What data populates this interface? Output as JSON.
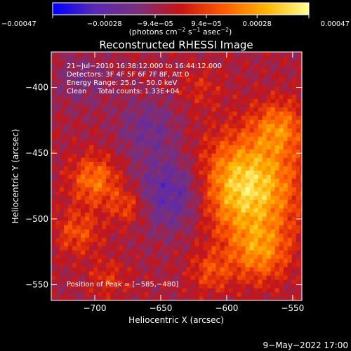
{
  "chart_data": {
    "type": "heatmap",
    "title": "Reconstructed RHESSI Image",
    "xlabel": "Heliocentric X (arcsec)",
    "ylabel": "Heliocentric Y (arcsec)",
    "xlim": [
      -733,
      -543
    ],
    "ylim": [
      -562,
      -373
    ],
    "x_ticks": [
      -700,
      -650,
      -600,
      -550
    ],
    "x_tick_labels": [
      "−700",
      "−650",
      "−600",
      "−550"
    ],
    "y_ticks": [
      -400,
      -450,
      -500,
      -550
    ],
    "y_tick_labels": [
      "−400",
      "−450",
      "−500",
      "−550"
    ],
    "colorbar": {
      "min": -0.00047,
      "max": 0.00047,
      "tick_values": [
        -0.00047,
        -0.00028,
        -9.4e-05,
        9.4e-05,
        0.00028,
        0.00047
      ],
      "tick_labels": [
        "−0.00047",
        "−0.00028",
        "−9.4e−05",
        "9.4e−05",
        "0.00028",
        "0.00047"
      ],
      "unit_main": "(photons cm",
      "unit_sup1": "−2",
      "unit_mid1": " s",
      "unit_sup2": "−1",
      "unit_mid2": " asec",
      "unit_sup3": "−2",
      "unit_end": ")",
      "colormap": [
        "#0000ff",
        "#5a2ab0",
        "#7a2f7a",
        "#c81414",
        "#ff5a00",
        "#ffb400",
        "#ffff96"
      ]
    },
    "info_lines": [
      "21−Jul−2010 16:38:12.000 to 16:44:12.000",
      "Detectors: 3F 4F 5F 6F 7F 8F, Att 0",
      "Energy Range: 25.0 − 50.0 keV",
      "Clean     Total counts: 1.33E+04"
    ],
    "peak_label": "Position of Peak = [−585,−480]",
    "peak": [
      -585,
      -480
    ],
    "sources": [
      {
        "x": -585,
        "y": -475,
        "sigma": 26,
        "amplitude": 0.00047
      },
      {
        "x": -560,
        "y": -430,
        "sigma": 14,
        "amplitude": 0.00024
      },
      {
        "x": -575,
        "y": -525,
        "sigma": 16,
        "amplitude": 0.00026
      },
      {
        "x": -700,
        "y": -470,
        "sigma": 13,
        "amplitude": 0.00026
      },
      {
        "x": -675,
        "y": -490,
        "sigma": 10,
        "amplitude": 0.00018
      },
      {
        "x": -713,
        "y": -510,
        "sigma": 12,
        "amplitude": 0.00018
      },
      {
        "x": -690,
        "y": -545,
        "sigma": 10,
        "amplitude": 0.00012
      },
      {
        "x": -612,
        "y": -540,
        "sigma": 11,
        "amplitude": 0.00016
      },
      {
        "x": -620,
        "y": -400,
        "sigma": 11,
        "amplitude": 9e-05
      },
      {
        "x": -640,
        "y": -480,
        "sigma": 20,
        "amplitude": -0.00025
      },
      {
        "x": -660,
        "y": -430,
        "sigma": 16,
        "amplitude": -0.00014
      },
      {
        "x": -710,
        "y": -395,
        "sigma": 14,
        "amplitude": -0.0001
      }
    ]
  },
  "footer": {
    "timestamp": "9−May−2022 17:00"
  }
}
